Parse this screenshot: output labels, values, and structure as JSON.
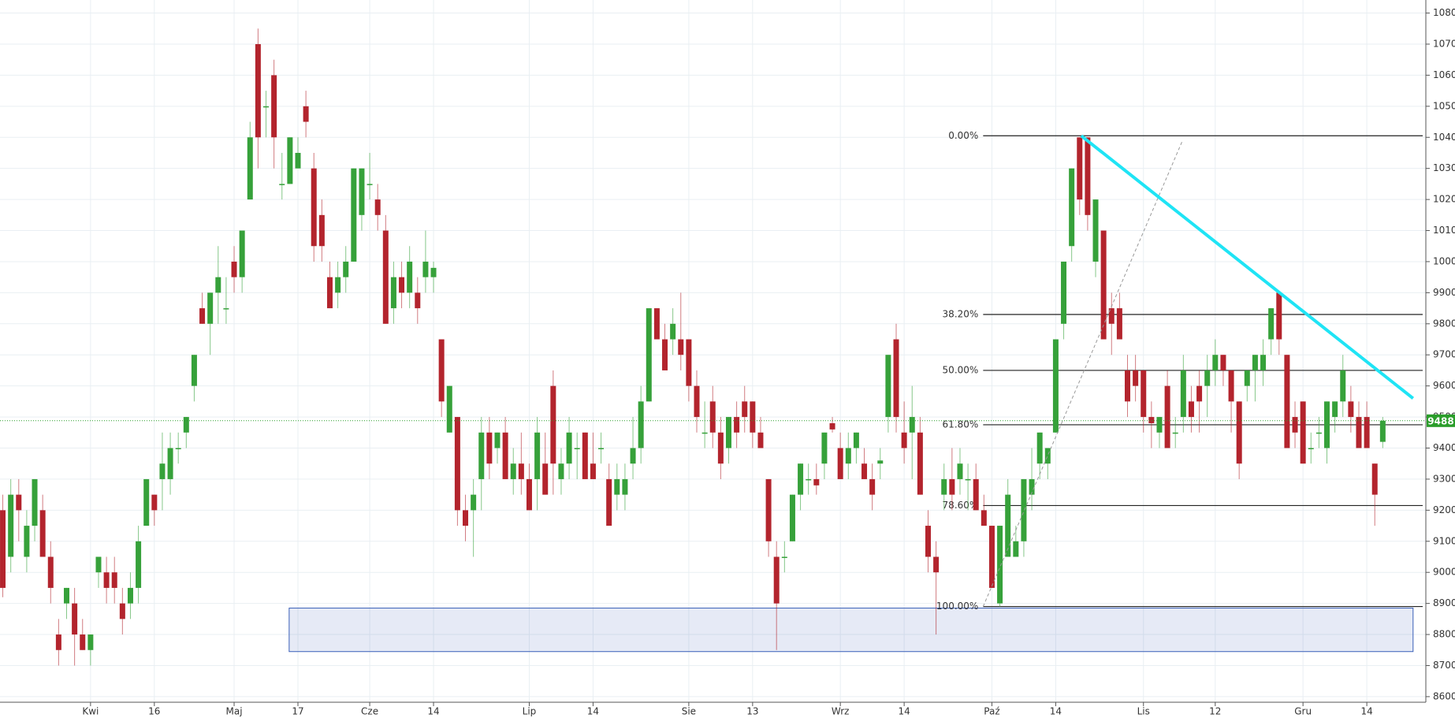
{
  "chart_data": {
    "type": "candlestick",
    "up_color": "#36a13a",
    "down_color": "#b3242d",
    "grid": true,
    "xlim": [
      -0.35,
      178.4
    ],
    "ylim": [
      8582,
      10842
    ],
    "yticks": [
      8600,
      8700,
      8800,
      8900,
      9000,
      9100,
      9200,
      9300,
      9400,
      9500,
      9600,
      9700,
      9800,
      9900,
      10000,
      10100,
      10200,
      10300,
      10400,
      10500,
      10600,
      10700,
      10800
    ],
    "xticks": [
      {
        "value": 11,
        "label": "Kwi"
      },
      {
        "value": 19,
        "label": "16"
      },
      {
        "value": 29,
        "label": "Maj"
      },
      {
        "value": 37,
        "label": "17"
      },
      {
        "value": 46,
        "label": "Cze"
      },
      {
        "value": 54,
        "label": "14"
      },
      {
        "value": 66,
        "label": "Lip"
      },
      {
        "value": 74,
        "label": "14"
      },
      {
        "value": 86,
        "label": "Sie"
      },
      {
        "value": 94,
        "label": "13"
      },
      {
        "value": 105,
        "label": "Wrz"
      },
      {
        "value": 113,
        "label": "14"
      },
      {
        "value": 124,
        "label": "Paź"
      },
      {
        "value": 132,
        "label": "14"
      },
      {
        "value": 143,
        "label": "Lis"
      },
      {
        "value": 152,
        "label": "12"
      },
      {
        "value": 163,
        "label": "Gru"
      },
      {
        "value": 171,
        "label": "14"
      }
    ],
    "ohlc": [
      [
        9200,
        9250,
        8920,
        8950
      ],
      [
        9050,
        9300,
        9000,
        9250
      ],
      [
        9250,
        9300,
        9100,
        9200
      ],
      [
        9050,
        9200,
        9000,
        9150
      ],
      [
        9150,
        9300,
        9100,
        9300
      ],
      [
        9200,
        9250,
        9050,
        9050
      ],
      [
        9050,
        9100,
        8900,
        8950
      ],
      [
        8800,
        8850,
        8700,
        8750
      ],
      [
        8900,
        8950,
        8850,
        8950
      ],
      [
        8900,
        8950,
        8700,
        8800
      ],
      [
        8800,
        8850,
        8750,
        8750
      ],
      [
        8750,
        8800,
        8700,
        8800
      ],
      [
        9000,
        9050,
        8950,
        9050
      ],
      [
        9000,
        9050,
        8900,
        8950
      ],
      [
        9000,
        9050,
        8900,
        8950
      ],
      [
        8900,
        8950,
        8800,
        8850
      ],
      [
        8900,
        9000,
        8850,
        8950
      ],
      [
        8950,
        9150,
        8900,
        9100
      ],
      [
        9150,
        9300,
        9150,
        9300
      ],
      [
        9250,
        9250,
        9150,
        9200
      ],
      [
        9300,
        9450,
        9200,
        9350
      ],
      [
        9300,
        9450,
        9250,
        9400
      ],
      [
        9400,
        9450,
        9350,
        9400
      ],
      [
        9450,
        9500,
        9400,
        9500
      ],
      [
        9600,
        9700,
        9550,
        9700
      ],
      [
        9850,
        9900,
        9800,
        9800
      ],
      [
        9800,
        9900,
        9700,
        9900
      ],
      [
        9900,
        10050,
        9800,
        9950
      ],
      [
        9850,
        9950,
        9800,
        9850
      ],
      [
        10000,
        10050,
        9900,
        9950
      ],
      [
        9950,
        10100,
        9900,
        10100
      ],
      [
        10200,
        10450,
        10200,
        10400
      ],
      [
        10700,
        10750,
        10300,
        10400
      ],
      [
        10500,
        10550,
        10400,
        10500
      ],
      [
        10600,
        10650,
        10300,
        10400
      ],
      [
        10250,
        10350,
        10200,
        10250
      ],
      [
        10250,
        10400,
        10250,
        10400
      ],
      [
        10300,
        10400,
        10300,
        10350
      ],
      [
        10500,
        10550,
        10400,
        10450
      ],
      [
        10300,
        10350,
        10000,
        10050
      ],
      [
        10150,
        10200,
        10000,
        10050
      ],
      [
        9950,
        10000,
        9850,
        9850
      ],
      [
        9900,
        10000,
        9850,
        9950
      ],
      [
        9950,
        10050,
        9900,
        10000
      ],
      [
        10000,
        10300,
        10000,
        10300
      ],
      [
        10150,
        10300,
        10100,
        10300
      ],
      [
        10250,
        10350,
        10200,
        10250
      ],
      [
        10200,
        10250,
        10100,
        10150
      ],
      [
        10100,
        10150,
        9800,
        9800
      ],
      [
        9850,
        10000,
        9800,
        9950
      ],
      [
        9950,
        10000,
        9850,
        9900
      ],
      [
        9900,
        10050,
        9850,
        10000
      ],
      [
        9900,
        9950,
        9800,
        9850
      ],
      [
        9950,
        10100,
        9900,
        10000
      ],
      [
        9950,
        10000,
        9900,
        9980
      ],
      [
        9750,
        9750,
        9500,
        9550
      ],
      [
        9450,
        9600,
        9450,
        9600
      ],
      [
        9500,
        9500,
        9150,
        9200
      ],
      [
        9200,
        9250,
        9100,
        9150
      ],
      [
        9200,
        9300,
        9050,
        9250
      ],
      [
        9300,
        9500,
        9200,
        9450
      ],
      [
        9450,
        9500,
        9300,
        9350
      ],
      [
        9400,
        9450,
        9350,
        9450
      ],
      [
        9450,
        9500,
        9300,
        9300
      ],
      [
        9300,
        9400,
        9250,
        9350
      ],
      [
        9350,
        9450,
        9250,
        9300
      ],
      [
        9300,
        9350,
        9200,
        9200
      ],
      [
        9300,
        9500,
        9200,
        9450
      ],
      [
        9350,
        9450,
        9250,
        9250
      ],
      [
        9600,
        9650,
        9250,
        9350
      ],
      [
        9300,
        9400,
        9250,
        9350
      ],
      [
        9350,
        9500,
        9300,
        9450
      ],
      [
        9400,
        9450,
        9300,
        9400
      ],
      [
        9450,
        9450,
        9300,
        9300
      ],
      [
        9350,
        9450,
        9300,
        9300
      ],
      [
        9400,
        9450,
        9350,
        9400
      ],
      [
        9300,
        9350,
        9150,
        9150
      ],
      [
        9250,
        9350,
        9200,
        9300
      ],
      [
        9250,
        9350,
        9200,
        9300
      ],
      [
        9350,
        9500,
        9300,
        9400
      ],
      [
        9400,
        9600,
        9350,
        9550
      ],
      [
        9550,
        9850,
        9550,
        9850
      ],
      [
        9850,
        9850,
        9750,
        9750
      ],
      [
        9750,
        9800,
        9650,
        9650
      ],
      [
        9750,
        9850,
        9700,
        9800
      ],
      [
        9750,
        9900,
        9650,
        9700
      ],
      [
        9750,
        9750,
        9550,
        9600
      ],
      [
        9600,
        9650,
        9450,
        9500
      ],
      [
        9450,
        9550,
        9400,
        9450
      ],
      [
        9550,
        9600,
        9400,
        9450
      ],
      [
        9450,
        9500,
        9300,
        9350
      ],
      [
        9400,
        9500,
        9350,
        9500
      ],
      [
        9500,
        9550,
        9400,
        9450
      ],
      [
        9550,
        9600,
        9450,
        9500
      ],
      [
        9550,
        9550,
        9400,
        9450
      ],
      [
        9450,
        9500,
        9400,
        9400
      ],
      [
        9300,
        9300,
        9050,
        9100
      ],
      [
        9050,
        9100,
        8750,
        8900
      ],
      [
        9050,
        9100,
        9000,
        9050
      ],
      [
        9100,
        9250,
        9100,
        9250
      ],
      [
        9250,
        9350,
        9200,
        9350
      ],
      [
        9300,
        9350,
        9250,
        9300
      ],
      [
        9300,
        9350,
        9250,
        9280
      ],
      [
        9350,
        9450,
        9300,
        9450
      ],
      [
        9480,
        9500,
        9450,
        9460
      ],
      [
        9400,
        9450,
        9300,
        9300
      ],
      [
        9350,
        9450,
        9300,
        9400
      ],
      [
        9400,
        9450,
        9350,
        9450
      ],
      [
        9350,
        9400,
        9300,
        9300
      ],
      [
        9300,
        9350,
        9200,
        9250
      ],
      [
        9350,
        9400,
        9300,
        9360
      ],
      [
        9500,
        9700,
        9450,
        9700
      ],
      [
        9750,
        9800,
        9450,
        9500
      ],
      [
        9450,
        9550,
        9350,
        9400
      ],
      [
        9450,
        9600,
        9300,
        9500
      ],
      [
        9450,
        9500,
        9250,
        9250
      ],
      [
        9150,
        9200,
        9000,
        9050
      ],
      [
        9050,
        9100,
        8800,
        9000
      ],
      [
        9250,
        9350,
        9200,
        9300
      ],
      [
        9300,
        9400,
        9200,
        9250
      ],
      [
        9300,
        9400,
        9250,
        9350
      ],
      [
        9300,
        9350,
        9200,
        9300
      ],
      [
        9300,
        9350,
        9200,
        9200
      ],
      [
        9200,
        9250,
        9150,
        9150
      ],
      [
        9150,
        9150,
        8950,
        8950
      ],
      [
        8900,
        9150,
        8890,
        9150
      ],
      [
        9050,
        9300,
        9050,
        9250
      ],
      [
        9050,
        9150,
        9050,
        9100
      ],
      [
        9100,
        9300,
        9050,
        9300
      ],
      [
        9250,
        9400,
        9200,
        9300
      ],
      [
        9350,
        9450,
        9300,
        9450
      ],
      [
        9350,
        9400,
        9300,
        9400
      ],
      [
        9450,
        9750,
        9450,
        9750
      ],
      [
        9800,
        10000,
        9750,
        10000
      ],
      [
        10050,
        10300,
        10000,
        10300
      ],
      [
        10400,
        10400,
        10150,
        10200
      ],
      [
        10400,
        10400,
        10100,
        10150
      ],
      [
        10000,
        10200,
        9950,
        10200
      ],
      [
        10100,
        10100,
        9750,
        9750
      ],
      [
        9850,
        9900,
        9700,
        9800
      ],
      [
        9850,
        9900,
        9750,
        9750
      ],
      [
        9650,
        9700,
        9500,
        9550
      ],
      [
        9650,
        9700,
        9550,
        9600
      ],
      [
        9650,
        9650,
        9450,
        9500
      ],
      [
        9500,
        9550,
        9400,
        9480
      ],
      [
        9450,
        9500,
        9400,
        9500
      ],
      [
        9600,
        9650,
        9400,
        9400
      ],
      [
        9450,
        9500,
        9400,
        9450
      ],
      [
        9500,
        9700,
        9450,
        9650
      ],
      [
        9550,
        9600,
        9450,
        9500
      ],
      [
        9600,
        9650,
        9450,
        9550
      ],
      [
        9600,
        9700,
        9500,
        9650
      ],
      [
        9650,
        9750,
        9600,
        9700
      ],
      [
        9700,
        9700,
        9600,
        9650
      ],
      [
        9650,
        9650,
        9450,
        9550
      ],
      [
        9550,
        9550,
        9300,
        9350
      ],
      [
        9600,
        9650,
        9550,
        9650
      ],
      [
        9650,
        9700,
        9550,
        9700
      ],
      [
        9650,
        9750,
        9600,
        9700
      ],
      [
        9750,
        9850,
        9700,
        9850
      ],
      [
        9900,
        9900,
        9700,
        9750
      ],
      [
        9700,
        9700,
        9400,
        9400
      ],
      [
        9500,
        9550,
        9400,
        9450
      ],
      [
        9550,
        9550,
        9350,
        9350
      ],
      [
        9400,
        9450,
        9350,
        9400
      ],
      [
        9450,
        9500,
        9400,
        9450
      ],
      [
        9400,
        9550,
        9350,
        9550
      ],
      [
        9500,
        9550,
        9450,
        9550
      ],
      [
        9550,
        9700,
        9500,
        9650
      ],
      [
        9550,
        9600,
        9450,
        9500
      ],
      [
        9500,
        9550,
        9400,
        9400
      ],
      [
        9500,
        9550,
        9400,
        9400
      ],
      [
        9350,
        9350,
        9150,
        9250
      ],
      [
        9420,
        9500,
        9400,
        9488
      ]
    ],
    "last_price": 9488,
    "last_color": "#2a9d2a",
    "fib": [
      {
        "label": "0.00%",
        "price": 10405
      },
      {
        "label": "38.20%",
        "price": 9830
      },
      {
        "label": "50.00%",
        "price": 9650
      },
      {
        "label": "61.80%",
        "price": 9475
      },
      {
        "label": "78.60%",
        "price": 9215
      },
      {
        "label": "100.00%",
        "price": 8890
      }
    ],
    "lines": [
      {
        "x": [
          122.9,
          147.9
        ],
        "y": [
          8890,
          10390
        ],
        "color": "#999999",
        "dashed": true
      },
      {
        "x": [
          135.2,
          176.8
        ],
        "y": [
          10405,
          9560
        ],
        "color": "#1fe4f5",
        "dashed": false
      }
    ],
    "zones": [
      {
        "x": [
          35.9,
          176.8
        ],
        "y": [
          8745,
          8885
        ],
        "color": "#3a5fb8"
      }
    ]
  }
}
